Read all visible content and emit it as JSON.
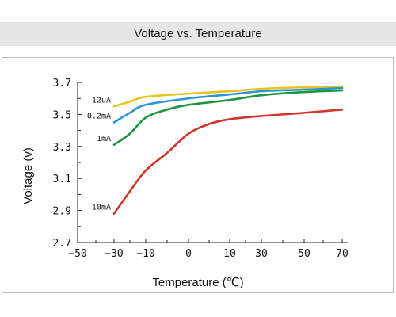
{
  "chart_data": {
    "type": "line",
    "title": "Voltage vs. Temperature",
    "xlabel": "Temperature (℃)",
    "ylabel": "Voltage (v)",
    "x_ticks": [
      "−50",
      "−30",
      "−10",
      "0",
      "10",
      "30",
      "50",
      "70"
    ],
    "y_ticks": [
      "2.7",
      "2.9",
      "3.1",
      "3.3",
      "3.5",
      "3.7"
    ],
    "ylim": [
      2.7,
      3.7
    ],
    "grid": false,
    "series": [
      {
        "name": "12uA",
        "color": "#e8c31c",
        "x": [
          -30,
          -20,
          -10,
          0,
          10,
          30,
          50,
          70
        ],
        "y": [
          3.55,
          3.58,
          3.61,
          3.63,
          3.645,
          3.66,
          3.67,
          3.675
        ]
      },
      {
        "name": "0.2mA",
        "color": "#2b95d6",
        "x": [
          -30,
          -20,
          -10,
          0,
          10,
          30,
          50,
          70
        ],
        "y": [
          3.45,
          3.51,
          3.56,
          3.6,
          3.625,
          3.645,
          3.655,
          3.665
        ]
      },
      {
        "name": "1mA",
        "color": "#1e9640",
        "x": [
          -30,
          -20,
          -10,
          -5,
          0,
          10,
          30,
          50,
          70
        ],
        "y": [
          3.31,
          3.38,
          3.48,
          3.53,
          3.56,
          3.59,
          3.62,
          3.64,
          3.65
        ]
      },
      {
        "name": "10mA",
        "color": "#d1342a",
        "x": [
          -30,
          -20,
          -10,
          -5,
          0,
          5,
          10,
          30,
          50,
          70
        ],
        "y": [
          2.88,
          3.02,
          3.15,
          3.26,
          3.38,
          3.44,
          3.47,
          3.49,
          3.51,
          3.53
        ]
      }
    ]
  }
}
